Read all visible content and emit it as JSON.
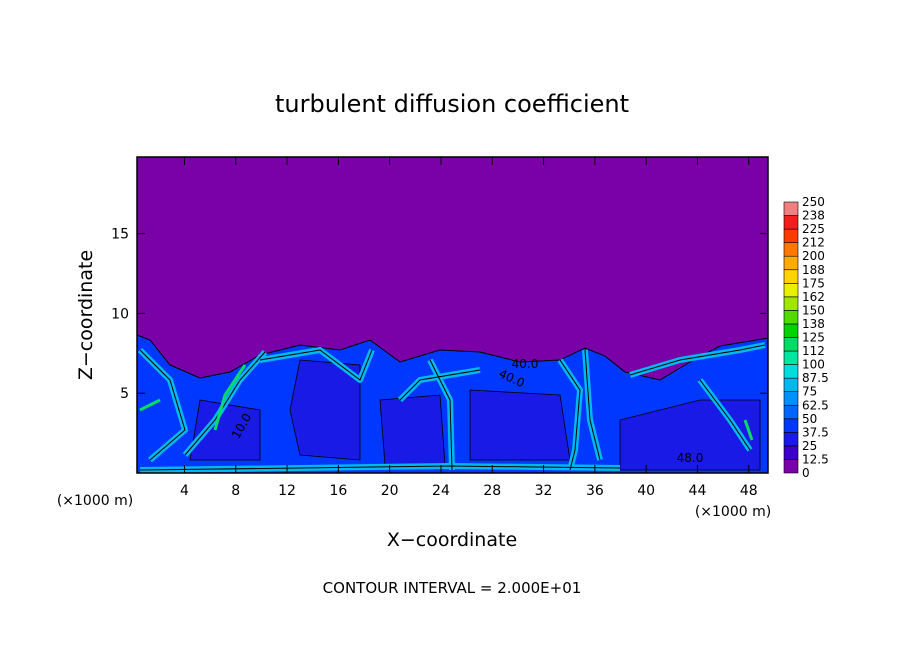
{
  "chart_data": {
    "type": "contour",
    "title": "turbulent diffusion coefficient",
    "x_label": "X−coordinate",
    "y_label": "Z−coordinate",
    "x_unit": "(×1000 m)",
    "y_unit": "(×1000 m)",
    "footer": "CONTOUR INTERVAL = 2.000E+01",
    "xlim": [
      0.3,
      49.5
    ],
    "ylim": [
      0,
      19.8
    ],
    "xticks": [
      4,
      8,
      12,
      16,
      20,
      24,
      28,
      32,
      36,
      40,
      44,
      48
    ],
    "yticks": [
      5,
      10,
      15
    ],
    "annotations": [
      "40.0",
      "40.0",
      "48.0",
      "10.0"
    ],
    "colorbar": {
      "levels": [
        0,
        12.5,
        25,
        37.5,
        50,
        62.5,
        75,
        87.5,
        100,
        112,
        125,
        138,
        150,
        162,
        175,
        188,
        200,
        212,
        225,
        238,
        250
      ],
      "colors": [
        "#7a00a8",
        "#3c00c8",
        "#1a1ae6",
        "#0038ff",
        "#0066ff",
        "#0090ff",
        "#00b8f0",
        "#00dcdc",
        "#00e6a0",
        "#00dc64",
        "#00d200",
        "#50dc00",
        "#a0e600",
        "#e6f000",
        "#ffd200",
        "#ffaa00",
        "#ff7800",
        "#ff3c00",
        "#f01e1e",
        "#f08080"
      ]
    }
  }
}
